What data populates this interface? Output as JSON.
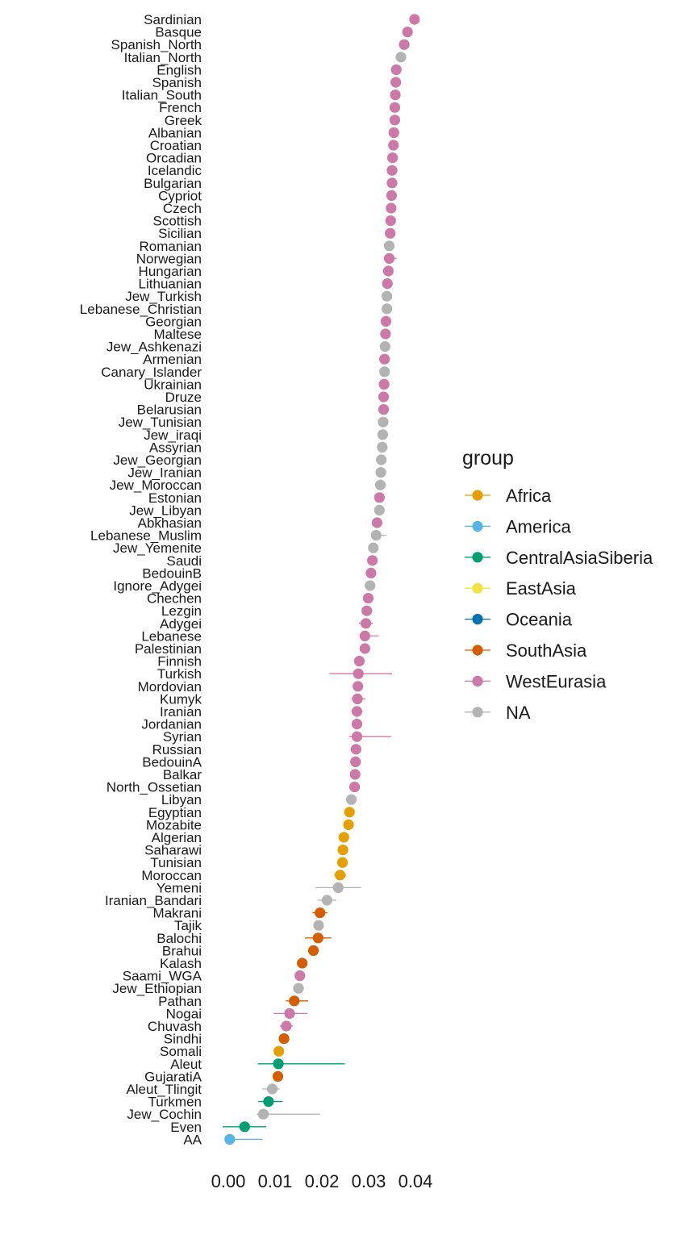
{
  "chart_data": {
    "type": "scatter",
    "orientation": "horizontal",
    "categories": [
      "Sardinian",
      "Basque",
      "Spanish_North",
      "Italian_North",
      "English",
      "Spanish",
      "Italian_South",
      "French",
      "Greek",
      "Albanian",
      "Croatian",
      "Orcadian",
      "Icelandic",
      "Bulgarian",
      "Cypriot",
      "Czech",
      "Scottish",
      "Sicilian",
      "Romanian",
      "Norwegian",
      "Hungarian",
      "Lithuanian",
      "Jew_Turkish",
      "Lebanese_Christian",
      "Georgian",
      "Maltese",
      "Jew_Ashkenazi",
      "Armenian",
      "Canary_Islander",
      "Ukrainian",
      "Druze",
      "Belarusian",
      "Jew_Tunisian",
      "Jew_iraqi",
      "Assyrian",
      "Jew_Georgian",
      "Jew_Iranian",
      "Jew_Moroccan",
      "Estonian",
      "Jew_Libyan",
      "Abkhasian",
      "Lebanese_Muslim",
      "Jew_Yemenite",
      "Saudi",
      "BedouinB",
      "Ignore_Adygei",
      "Chechen",
      "Lezgin",
      "Adygei",
      "Lebanese",
      "Palestinian",
      "Finnish",
      "Turkish",
      "Mordovian",
      "Kumyk",
      "Iranian",
      "Jordanian",
      "Syrian",
      "Russian",
      "BedouinA",
      "Balkar",
      "North_Ossetian",
      "Libyan",
      "Egyptian",
      "Mozabite",
      "Algerian",
      "Saharawi",
      "Tunisian",
      "Moroccan",
      "Yemeni",
      "Iranian_Bandari",
      "Makrani",
      "Tajik",
      "Balochi",
      "Brahui",
      "Kalash",
      "Saami_WGA",
      "Jew_Ethiopian",
      "Pathan",
      "Nogai",
      "Chuvash",
      "Sindhi",
      "Somali",
      "Aleut",
      "GujaratiA",
      "Aleut_Tlingit",
      "Turkmen",
      "Jew_Cochin",
      "Even",
      "AA"
    ],
    "values": [
      0.0398,
      0.0383,
      0.0376,
      0.0369,
      0.0359,
      0.0358,
      0.0357,
      0.0356,
      0.0356,
      0.0354,
      0.0353,
      0.0351,
      0.035,
      0.035,
      0.0349,
      0.0348,
      0.0347,
      0.0346,
      0.0344,
      0.0344,
      0.0342,
      0.034,
      0.0339,
      0.0339,
      0.0337,
      0.0336,
      0.0335,
      0.0334,
      0.0334,
      0.0333,
      0.0332,
      0.0332,
      0.0331,
      0.033,
      0.0329,
      0.0327,
      0.0326,
      0.0325,
      0.0323,
      0.0323,
      0.0318,
      0.0316,
      0.031,
      0.0308,
      0.0305,
      0.0303,
      0.0299,
      0.0296,
      0.0294,
      0.0292,
      0.0292,
      0.028,
      0.0278,
      0.0277,
      0.0276,
      0.0275,
      0.0275,
      0.0275,
      0.0273,
      0.0272,
      0.0271,
      0.027,
      0.0263,
      0.0259,
      0.0257,
      0.0247,
      0.0245,
      0.0244,
      0.0239,
      0.0235,
      0.0211,
      0.0196,
      0.0193,
      0.0192,
      0.0182,
      0.0158,
      0.0153,
      0.015,
      0.0141,
      0.0131,
      0.0124,
      0.0119,
      0.0108,
      0.0107,
      0.0106,
      0.0094,
      0.0086,
      0.0075,
      0.0035,
      0.0003
    ],
    "errors": [
      [
        0.0394,
        0.0402
      ],
      [
        0.0379,
        0.0387
      ],
      [
        0.0372,
        0.038
      ],
      [
        0.0365,
        0.0373
      ],
      [
        0.0355,
        0.0363
      ],
      [
        0.0352,
        0.0364
      ],
      [
        0.0353,
        0.0361
      ],
      [
        0.035,
        0.0364
      ],
      [
        0.0352,
        0.036
      ],
      [
        0.035,
        0.0358
      ],
      [
        0.0349,
        0.0357
      ],
      [
        0.0347,
        0.0355
      ],
      [
        0.0346,
        0.0354
      ],
      [
        0.0346,
        0.0354
      ],
      [
        0.0345,
        0.0353
      ],
      [
        0.0344,
        0.0352
      ],
      [
        0.0343,
        0.0351
      ],
      [
        0.0342,
        0.035
      ],
      [
        0.034,
        0.0348
      ],
      [
        0.0338,
        0.036
      ],
      [
        0.0338,
        0.0346
      ],
      [
        0.0334,
        0.0346
      ],
      [
        0.0335,
        0.0343
      ],
      [
        0.0335,
        0.0343
      ],
      [
        0.0333,
        0.0341
      ],
      [
        0.0332,
        0.034
      ],
      [
        0.0331,
        0.0339
      ],
      [
        0.033,
        0.0338
      ],
      [
        0.033,
        0.0338
      ],
      [
        0.0329,
        0.0337
      ],
      [
        0.0328,
        0.0336
      ],
      [
        0.0328,
        0.0336
      ],
      [
        0.0327,
        0.0335
      ],
      [
        0.0324,
        0.0338
      ],
      [
        0.0325,
        0.0333
      ],
      [
        0.0317,
        0.0337
      ],
      [
        0.0322,
        0.033
      ],
      [
        0.0321,
        0.0329
      ],
      [
        0.0319,
        0.0327
      ],
      [
        0.0319,
        0.0327
      ],
      [
        0.0314,
        0.0322
      ],
      [
        0.0306,
        0.0338
      ],
      [
        0.0302,
        0.0318
      ],
      [
        0.0302,
        0.0314
      ],
      [
        0.0301,
        0.0309
      ],
      [
        0.0299,
        0.0307
      ],
      [
        0.0295,
        0.0303
      ],
      [
        0.0292,
        0.03
      ],
      [
        0.0279,
        0.0309
      ],
      [
        0.0281,
        0.0321
      ],
      [
        0.0286,
        0.0298
      ],
      [
        0.027,
        0.029
      ],
      [
        0.0216,
        0.035
      ],
      [
        0.0273,
        0.0281
      ],
      [
        0.0263,
        0.0293
      ],
      [
        0.0263,
        0.0287
      ],
      [
        0.0267,
        0.0283
      ],
      [
        0.0258,
        0.0348
      ],
      [
        0.0265,
        0.0281
      ],
      [
        0.0262,
        0.0282
      ],
      [
        0.0264,
        0.0278
      ],
      [
        0.0266,
        0.0274
      ],
      [
        0.0259,
        0.0267
      ],
      [
        0.0251,
        0.0267
      ],
      [
        0.0247,
        0.0267
      ],
      [
        0.0239,
        0.0255
      ],
      [
        0.0241,
        0.0249
      ],
      [
        0.0234,
        0.0254
      ],
      [
        0.0226,
        0.0252
      ],
      [
        0.0186,
        0.0284
      ],
      [
        0.0191,
        0.0231
      ],
      [
        0.018,
        0.0212
      ],
      [
        0.0183,
        0.0203
      ],
      [
        0.0164,
        0.022
      ],
      [
        0.0172,
        0.0192
      ],
      [
        0.0154,
        0.0162
      ],
      [
        0.0149,
        0.0157
      ],
      [
        0.0146,
        0.0154
      ],
      [
        0.0123,
        0.0171
      ],
      [
        0.0097,
        0.0169
      ],
      [
        0.011,
        0.0138
      ],
      [
        0.0109,
        0.0129
      ],
      [
        0.0104,
        0.0112
      ],
      [
        0.0063,
        0.0249
      ],
      [
        0.01,
        0.0112
      ],
      [
        0.0072,
        0.011
      ],
      [
        0.0064,
        0.0116
      ],
      [
        0.0061,
        0.0196
      ],
      [
        -0.0012,
        0.0081
      ],
      [
        0.0001,
        0.0073
      ]
    ],
    "groups": [
      "WestEurasia",
      "WestEurasia",
      "WestEurasia",
      "NA",
      "WestEurasia",
      "WestEurasia",
      "WestEurasia",
      "WestEurasia",
      "WestEurasia",
      "WestEurasia",
      "WestEurasia",
      "WestEurasia",
      "WestEurasia",
      "WestEurasia",
      "WestEurasia",
      "WestEurasia",
      "WestEurasia",
      "WestEurasia",
      "NA",
      "WestEurasia",
      "WestEurasia",
      "WestEurasia",
      "NA",
      "NA",
      "WestEurasia",
      "WestEurasia",
      "NA",
      "WestEurasia",
      "NA",
      "WestEurasia",
      "WestEurasia",
      "WestEurasia",
      "NA",
      "NA",
      "NA",
      "NA",
      "NA",
      "NA",
      "WestEurasia",
      "NA",
      "WestEurasia",
      "NA",
      "NA",
      "WestEurasia",
      "WestEurasia",
      "NA",
      "WestEurasia",
      "WestEurasia",
      "WestEurasia",
      "WestEurasia",
      "WestEurasia",
      "WestEurasia",
      "WestEurasia",
      "WestEurasia",
      "WestEurasia",
      "WestEurasia",
      "WestEurasia",
      "WestEurasia",
      "WestEurasia",
      "WestEurasia",
      "WestEurasia",
      "WestEurasia",
      "NA",
      "Africa",
      "Africa",
      "Africa",
      "Africa",
      "Africa",
      "Africa",
      "NA",
      "NA",
      "SouthAsia",
      "NA",
      "SouthAsia",
      "SouthAsia",
      "SouthAsia",
      "WestEurasia",
      "NA",
      "SouthAsia",
      "WestEurasia",
      "WestEurasia",
      "SouthAsia",
      "Africa",
      "CentralAsiaSiberia",
      "SouthAsia",
      "NA",
      "CentralAsiaSiberia",
      "NA",
      "CentralAsiaSiberia",
      "America"
    ],
    "xticks": [
      "0.00",
      "0.01",
      "0.02",
      "0.03",
      "0.04"
    ],
    "xtick_values": [
      0.0,
      0.01,
      0.02,
      0.03,
      0.04
    ],
    "xlim": [
      -0.0025,
      0.0425
    ],
    "title": "",
    "xlabel": "",
    "ylabel": "",
    "grid": false,
    "legend": {
      "title": "group",
      "placement": "right",
      "entries": [
        {
          "name": "Africa",
          "color": "#E69F00"
        },
        {
          "name": "America",
          "color": "#56B4E9"
        },
        {
          "name": "CentralAsiaSiberia",
          "color": "#009E73"
        },
        {
          "name": "EastAsia",
          "color": "#F0E442"
        },
        {
          "name": "Oceania",
          "color": "#0072B2"
        },
        {
          "name": "SouthAsia",
          "color": "#D55E00"
        },
        {
          "name": "WestEurasia",
          "color": "#CC79A7"
        },
        {
          "name": "NA",
          "color": "#B3B3B3"
        }
      ]
    }
  }
}
